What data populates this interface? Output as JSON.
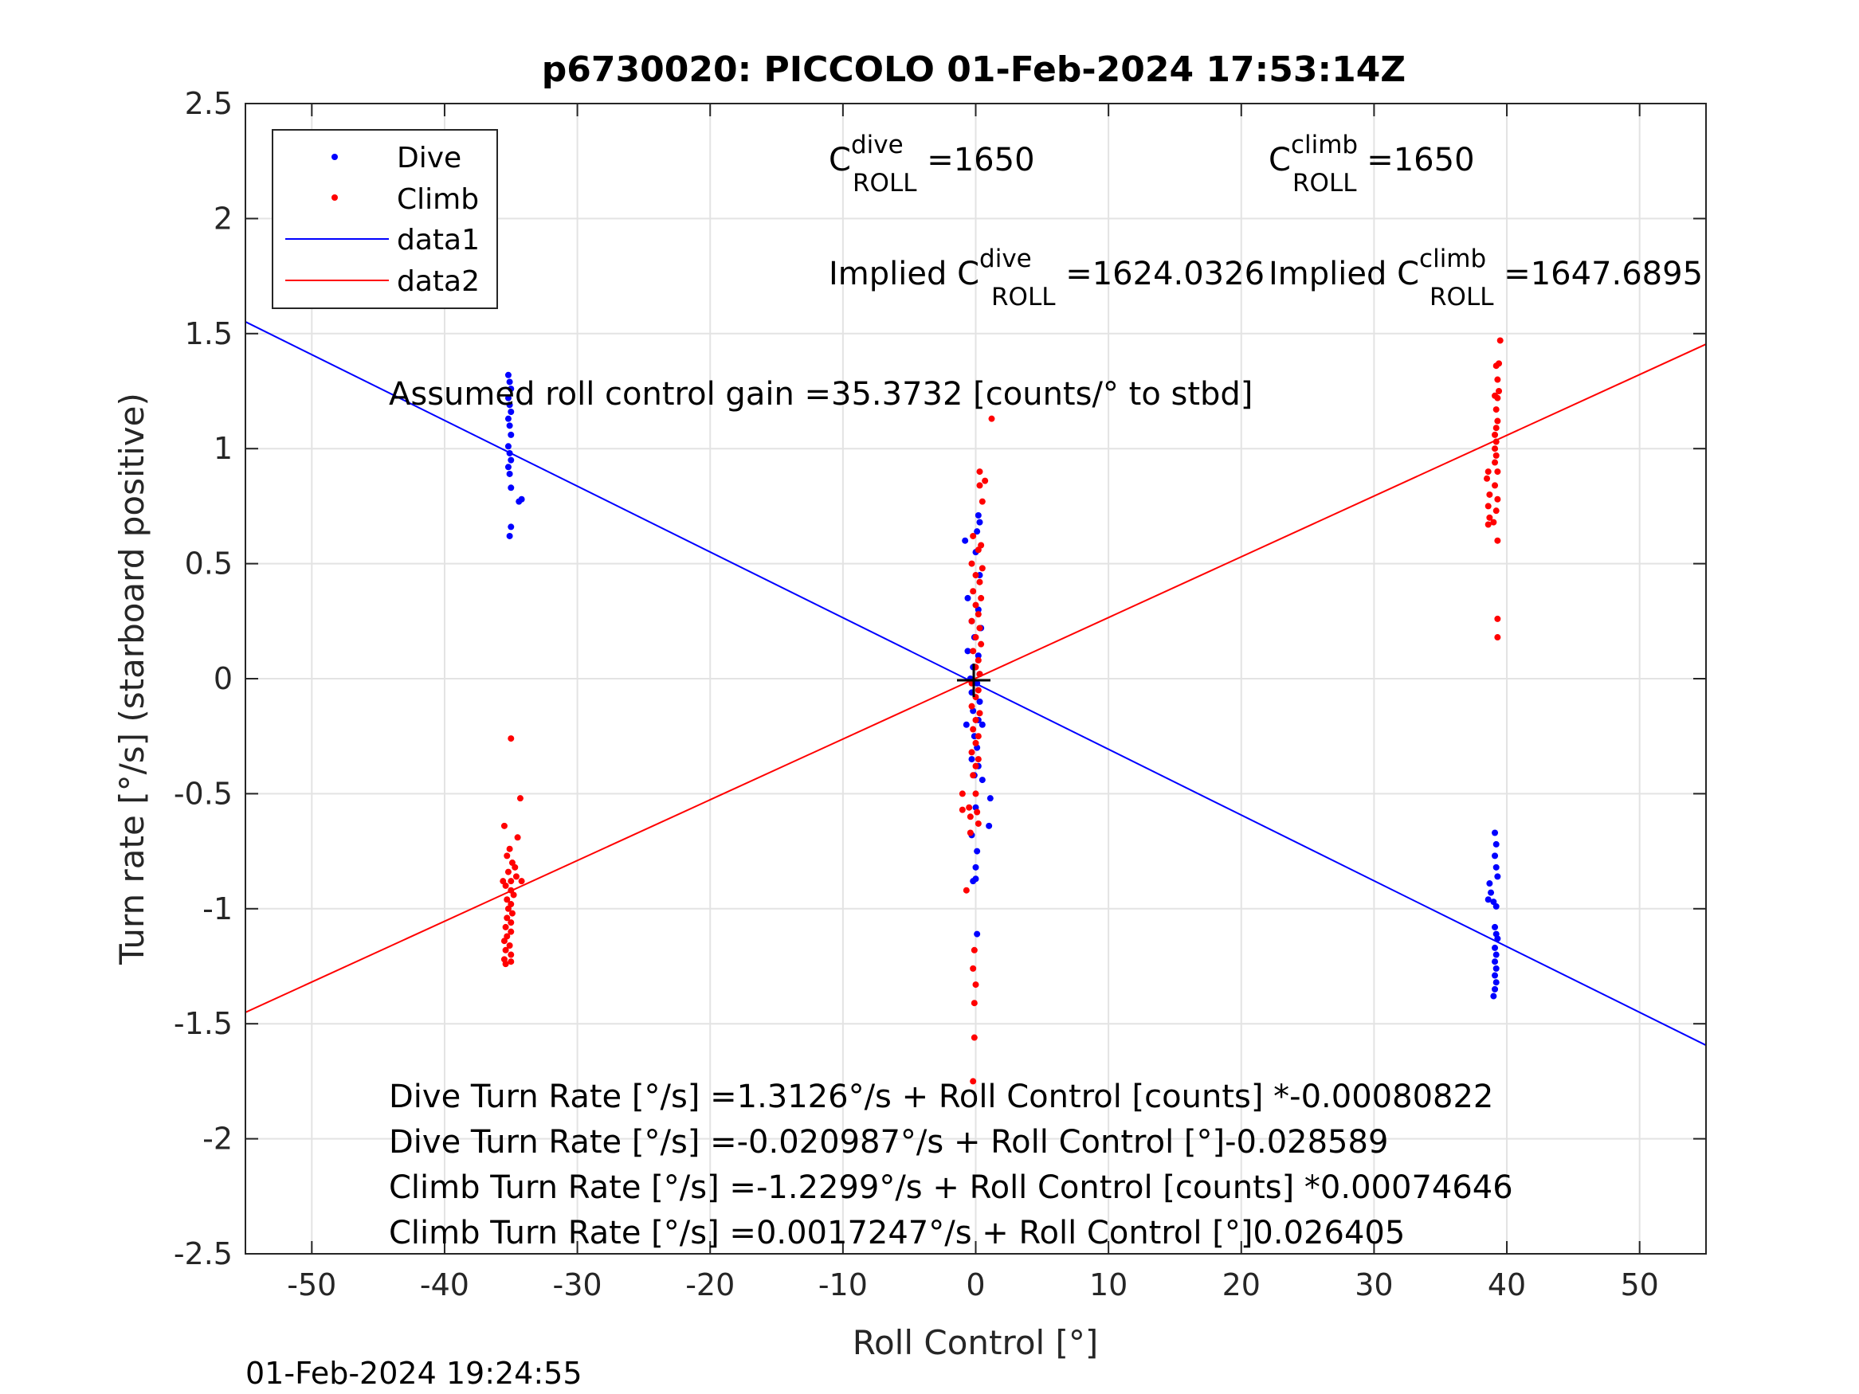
{
  "chart_data": {
    "type": "scatter",
    "title": "p6730020: PICCOLO 01-Feb-2024 17:53:14Z",
    "xlabel": "Roll Control [°]",
    "ylabel": "Turn rate [°/s] (starboard positive)",
    "xlim": [
      -55,
      55
    ],
    "ylim": [
      -2.5,
      2.5
    ],
    "xticks": [
      "-50",
      "-40",
      "-30",
      "-20",
      "-10",
      "0",
      "10",
      "20",
      "30",
      "40",
      "50"
    ],
    "yticks": [
      "2.5",
      "2",
      "1.5",
      "1",
      "0.5",
      "0",
      "-0.5",
      "-1",
      "-1.5",
      "-2",
      "-2.5"
    ],
    "grid": true,
    "legend_position": "top-left",
    "colors": {
      "dive": "#0000ff",
      "climb": "#ff0000",
      "marker": "#000000"
    },
    "legend": [
      "Dive",
      "Climb",
      "data1",
      "data2"
    ],
    "series": [
      {
        "name": "Dive",
        "points": [
          [
            -35.2,
            1.32
          ],
          [
            -35.1,
            1.29
          ],
          [
            -35.0,
            1.26
          ],
          [
            -35.2,
            1.22
          ],
          [
            -35.1,
            1.19
          ],
          [
            -35.0,
            1.16
          ],
          [
            -35.2,
            1.13
          ],
          [
            -35.1,
            1.1
          ],
          [
            -35.0,
            1.06
          ],
          [
            -35.2,
            1.01
          ],
          [
            -35.1,
            0.98
          ],
          [
            -35.0,
            0.95
          ],
          [
            -35.2,
            0.92
          ],
          [
            -35.1,
            0.89
          ],
          [
            -35.0,
            0.83
          ],
          [
            -34.4,
            0.77
          ],
          [
            -34.2,
            0.78
          ],
          [
            -35.0,
            0.66
          ],
          [
            -35.1,
            0.62
          ],
          [
            39.1,
            -0.67
          ],
          [
            39.2,
            -0.72
          ],
          [
            39.1,
            -0.77
          ],
          [
            39.2,
            -0.82
          ],
          [
            39.3,
            -0.86
          ],
          [
            38.7,
            -0.89
          ],
          [
            38.8,
            -0.93
          ],
          [
            38.6,
            -0.96
          ],
          [
            39.0,
            -0.97
          ],
          [
            39.2,
            -0.99
          ],
          [
            39.1,
            -1.08
          ],
          [
            39.2,
            -1.11
          ],
          [
            39.3,
            -1.13
          ],
          [
            39.1,
            -1.17
          ],
          [
            39.2,
            -1.2
          ],
          [
            39.1,
            -1.23
          ],
          [
            39.2,
            -1.26
          ],
          [
            39.1,
            -1.29
          ],
          [
            39.2,
            -1.32
          ],
          [
            39.1,
            -1.35
          ],
          [
            39.0,
            -1.38
          ],
          [
            0.2,
            0.71
          ],
          [
            0.3,
            0.68
          ],
          [
            0.1,
            0.64
          ],
          [
            0.0,
            0.55
          ],
          [
            -0.8,
            0.6
          ],
          [
            -0.6,
            0.35
          ],
          [
            0.3,
            0.45
          ],
          [
            0.2,
            0.3
          ],
          [
            -0.3,
            0.25
          ],
          [
            0.4,
            0.22
          ],
          [
            -0.1,
            0.18
          ],
          [
            -0.6,
            0.12
          ],
          [
            0.2,
            0.1
          ],
          [
            -0.2,
            0.05
          ],
          [
            0.3,
            0.02
          ],
          [
            -0.4,
            0.0
          ],
          [
            0.1,
            -0.02
          ],
          [
            -0.3,
            -0.06
          ],
          [
            0.3,
            -0.1
          ],
          [
            -0.2,
            -0.14
          ],
          [
            0.2,
            -0.18
          ],
          [
            -0.7,
            -0.2
          ],
          [
            0.5,
            -0.2
          ],
          [
            -0.1,
            -0.25
          ],
          [
            0.1,
            -0.3
          ],
          [
            -0.3,
            -0.35
          ],
          [
            0.2,
            -0.38
          ],
          [
            -0.1,
            -0.42
          ],
          [
            0.5,
            -0.44
          ],
          [
            1.1,
            -0.52
          ],
          [
            0.0,
            -0.56
          ],
          [
            1.0,
            -0.64
          ],
          [
            -0.3,
            -0.68
          ],
          [
            0.1,
            -0.75
          ],
          [
            0.0,
            -0.82
          ],
          [
            -0.2,
            -0.88
          ],
          [
            0.0,
            -0.87
          ],
          [
            0.1,
            -1.11
          ]
        ]
      },
      {
        "name": "Climb",
        "points": [
          [
            -35.0,
            -0.26
          ],
          [
            -34.3,
            -0.52
          ],
          [
            -35.5,
            -0.64
          ],
          [
            -34.5,
            -0.69
          ],
          [
            -35.1,
            -0.74
          ],
          [
            -35.3,
            -0.77
          ],
          [
            -34.9,
            -0.8
          ],
          [
            -34.7,
            -0.82
          ],
          [
            -35.2,
            -0.84
          ],
          [
            -34.6,
            -0.86
          ],
          [
            -35.6,
            -0.88
          ],
          [
            -35.0,
            -0.88
          ],
          [
            -34.2,
            -0.88
          ],
          [
            -35.4,
            -0.9
          ],
          [
            -35.0,
            -0.92
          ],
          [
            -34.8,
            -0.94
          ],
          [
            -35.3,
            -0.96
          ],
          [
            -35.0,
            -0.98
          ],
          [
            -35.2,
            -1.0
          ],
          [
            -34.9,
            -1.02
          ],
          [
            -35.3,
            -1.04
          ],
          [
            -35.0,
            -1.06
          ],
          [
            -35.4,
            -1.08
          ],
          [
            -35.0,
            -1.1
          ],
          [
            -35.3,
            -1.12
          ],
          [
            -35.5,
            -1.14
          ],
          [
            -35.1,
            -1.16
          ],
          [
            -35.4,
            -1.18
          ],
          [
            -35.0,
            -1.2
          ],
          [
            -35.5,
            -1.22
          ],
          [
            -35.0,
            -1.23
          ],
          [
            -35.4,
            -1.24
          ],
          [
            39.5,
            1.47
          ],
          [
            39.4,
            1.37
          ],
          [
            39.2,
            1.36
          ],
          [
            39.3,
            1.3
          ],
          [
            39.4,
            1.25
          ],
          [
            39.1,
            1.23
          ],
          [
            39.3,
            1.22
          ],
          [
            39.2,
            1.17
          ],
          [
            39.3,
            1.12
          ],
          [
            39.2,
            1.09
          ],
          [
            39.1,
            1.06
          ],
          [
            39.2,
            1.03
          ],
          [
            39.1,
            1.0
          ],
          [
            39.2,
            0.97
          ],
          [
            39.1,
            0.94
          ],
          [
            38.6,
            0.9
          ],
          [
            39.3,
            0.9
          ],
          [
            38.5,
            0.87
          ],
          [
            39.1,
            0.84
          ],
          [
            38.7,
            0.8
          ],
          [
            39.3,
            0.78
          ],
          [
            38.6,
            0.75
          ],
          [
            39.2,
            0.73
          ],
          [
            38.7,
            0.7
          ],
          [
            39.0,
            0.68
          ],
          [
            38.6,
            0.67
          ],
          [
            39.3,
            0.6
          ],
          [
            39.3,
            0.26
          ],
          [
            39.3,
            0.18
          ],
          [
            1.2,
            1.13
          ],
          [
            0.3,
            0.9
          ],
          [
            0.7,
            0.86
          ],
          [
            0.3,
            0.84
          ],
          [
            0.5,
            0.77
          ],
          [
            -0.2,
            0.62
          ],
          [
            0.4,
            0.58
          ],
          [
            0.2,
            0.56
          ],
          [
            -0.3,
            0.5
          ],
          [
            0.5,
            0.48
          ],
          [
            0.0,
            0.45
          ],
          [
            0.3,
            0.42
          ],
          [
            -0.2,
            0.38
          ],
          [
            0.4,
            0.35
          ],
          [
            0.0,
            0.32
          ],
          [
            0.2,
            0.28
          ],
          [
            -0.3,
            0.25
          ],
          [
            0.3,
            0.22
          ],
          [
            0.0,
            0.18
          ],
          [
            0.4,
            0.15
          ],
          [
            -0.2,
            0.12
          ],
          [
            0.2,
            0.08
          ],
          [
            0.0,
            0.05
          ],
          [
            0.3,
            0.02
          ],
          [
            -0.3,
            -0.02
          ],
          [
            0.2,
            -0.05
          ],
          [
            0.0,
            -0.08
          ],
          [
            -0.3,
            -0.12
          ],
          [
            0.3,
            -0.15
          ],
          [
            0.0,
            -0.18
          ],
          [
            -0.2,
            -0.22
          ],
          [
            0.2,
            -0.25
          ],
          [
            0.0,
            -0.28
          ],
          [
            -0.3,
            -0.32
          ],
          [
            0.2,
            -0.35
          ],
          [
            0.0,
            -0.38
          ],
          [
            -0.2,
            -0.42
          ],
          [
            -1.0,
            -0.5
          ],
          [
            0.0,
            -0.5
          ],
          [
            -0.5,
            -0.56
          ],
          [
            -1.0,
            -0.57
          ],
          [
            0.1,
            -0.58
          ],
          [
            -0.4,
            -0.6
          ],
          [
            0.2,
            -0.63
          ],
          [
            -0.4,
            -0.67
          ],
          [
            -0.7,
            -0.92
          ],
          [
            -0.1,
            -1.18
          ],
          [
            -0.2,
            -1.26
          ],
          [
            0.0,
            -1.33
          ],
          [
            -0.1,
            -1.41
          ],
          [
            -0.1,
            -1.56
          ],
          [
            -0.2,
            -1.75
          ]
        ]
      },
      {
        "name": "data1",
        "kind": "line",
        "intercept": -0.020987,
        "slope": -0.028589
      },
      {
        "name": "data2",
        "kind": "line",
        "intercept": 0.0017247,
        "slope": 0.026405
      }
    ],
    "annotations": {
      "c_dive_base": "C",
      "c_dive_sup": "dive",
      "c_dive_sub": "ROLL",
      "c_dive_val": " =1650",
      "c_climb_base": "C",
      "c_climb_sup": "climb",
      "c_climb_sub": "ROLL",
      "c_climb_val": " =1650",
      "implied_dive_prefix": "Implied C",
      "implied_dive_sup": "dive",
      "implied_dive_sub": "ROLL",
      "implied_dive_val": " =1624.0326",
      "implied_climb_prefix": "Implied C",
      "implied_climb_sup": "climb",
      "implied_climb_sub": "ROLL",
      "implied_climb_val": " =1647.6895",
      "gain": "Assumed roll control gain =35.3732 [counts/° to stbd]",
      "eq1": "Dive Turn Rate [°/s] =1.3126°/s + Roll Control [counts] *-0.00080822",
      "eq2": "Dive Turn Rate [°/s] =-0.020987°/s + Roll Control [°]-0.028589",
      "eq3": "Climb Turn Rate [°/s] =-1.2299°/s + Roll Control [counts] *0.00074646",
      "eq4": "Climb Turn Rate [°/s] =0.0017247°/s + Roll Control [°]0.026405"
    },
    "timestamp": "01-Feb-2024 19:24:55"
  }
}
